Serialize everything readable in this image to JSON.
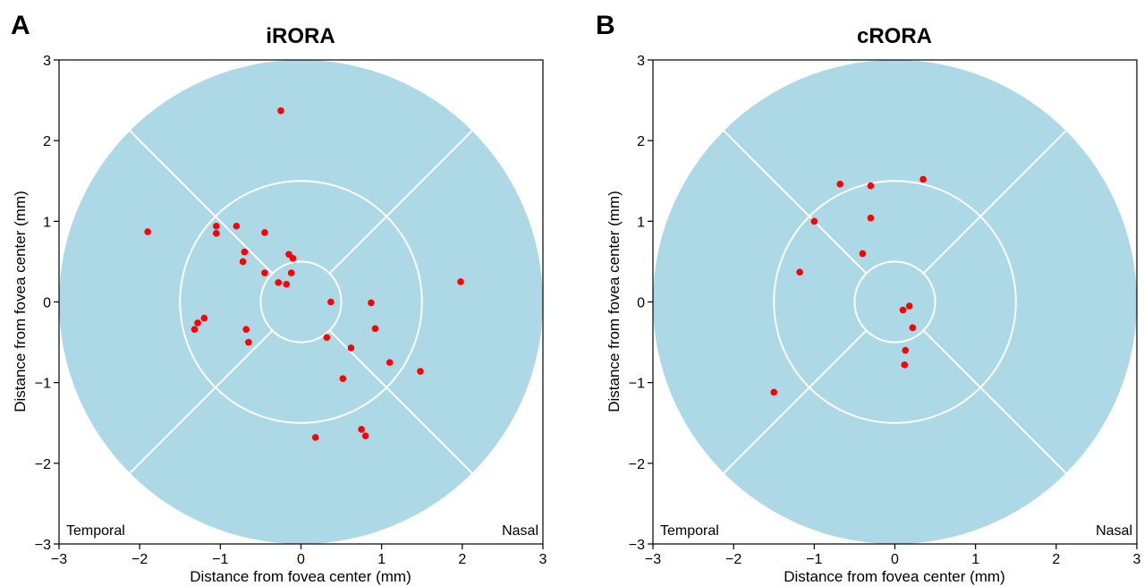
{
  "colors": {
    "region_fill": "#add8e6",
    "grid_lines": "#ffffff",
    "point": "#ff0000"
  },
  "chart_data": [
    {
      "panel": "A",
      "type": "scatter",
      "title": "iRORA",
      "xlabel": "Distance from fovea center (mm)",
      "ylabel": "Distance from fovea center (mm)",
      "xlim": [
        -3,
        3
      ],
      "ylim": [
        -3,
        3
      ],
      "xticks": [
        "−3",
        "−2",
        "−1",
        "0",
        "1",
        "2",
        "3"
      ],
      "yticks": [
        "−3",
        "−2",
        "−1",
        "0",
        "1",
        "2",
        "3"
      ],
      "background": {
        "rings_mm": [
          0.5,
          1.5,
          3.0
        ],
        "sector_boundaries_deg": [
          45,
          135,
          225,
          315
        ]
      },
      "annotations": {
        "left": "Temporal",
        "right": "Nasal"
      },
      "points": [
        {
          "x": -0.25,
          "y": 2.37
        },
        {
          "x": -1.9,
          "y": 0.87
        },
        {
          "x": -1.05,
          "y": 0.94
        },
        {
          "x": -1.05,
          "y": 0.85
        },
        {
          "x": -0.8,
          "y": 0.94
        },
        {
          "x": -0.45,
          "y": 0.86
        },
        {
          "x": -0.7,
          "y": 0.62
        },
        {
          "x": -0.72,
          "y": 0.5
        },
        {
          "x": -0.45,
          "y": 0.36
        },
        {
          "x": -0.15,
          "y": 0.59
        },
        {
          "x": -0.1,
          "y": 0.54
        },
        {
          "x": -0.12,
          "y": 0.36
        },
        {
          "x": -0.28,
          "y": 0.24
        },
        {
          "x": -0.18,
          "y": 0.22
        },
        {
          "x": 0.37,
          "y": 0.0
        },
        {
          "x": 0.87,
          "y": -0.01
        },
        {
          "x": 1.98,
          "y": 0.25
        },
        {
          "x": -1.2,
          "y": -0.2
        },
        {
          "x": -1.28,
          "y": -0.26
        },
        {
          "x": -1.32,
          "y": -0.34
        },
        {
          "x": -0.68,
          "y": -0.34
        },
        {
          "x": -0.65,
          "y": -0.5
        },
        {
          "x": 0.92,
          "y": -0.33
        },
        {
          "x": 0.32,
          "y": -0.44
        },
        {
          "x": 0.62,
          "y": -0.57
        },
        {
          "x": 1.1,
          "y": -0.75
        },
        {
          "x": 1.48,
          "y": -0.86
        },
        {
          "x": 0.52,
          "y": -0.95
        },
        {
          "x": 0.18,
          "y": -1.68
        },
        {
          "x": 0.75,
          "y": -1.58
        },
        {
          "x": 0.8,
          "y": -1.66
        }
      ]
    },
    {
      "panel": "B",
      "type": "scatter",
      "title": "cRORA",
      "xlabel": "Distance from fovea center (mm)",
      "ylabel": "Distance from fovea center (mm)",
      "xlim": [
        -3,
        3
      ],
      "ylim": [
        -3,
        3
      ],
      "xticks": [
        "−3",
        "−2",
        "−1",
        "0",
        "1",
        "2",
        "3"
      ],
      "yticks": [
        "−3",
        "−2",
        "−1",
        "0",
        "1",
        "2",
        "3"
      ],
      "background": {
        "rings_mm": [
          0.5,
          1.5,
          3.0
        ],
        "sector_boundaries_deg": [
          45,
          135,
          225,
          315
        ]
      },
      "annotations": {
        "left": "Temporal",
        "right": "Nasal"
      },
      "points": [
        {
          "x": -0.68,
          "y": 1.46
        },
        {
          "x": -0.3,
          "y": 1.44
        },
        {
          "x": 0.35,
          "y": 1.52
        },
        {
          "x": -1.0,
          "y": 1.0
        },
        {
          "x": -0.3,
          "y": 1.04
        },
        {
          "x": -0.4,
          "y": 0.6
        },
        {
          "x": -1.18,
          "y": 0.37
        },
        {
          "x": 0.18,
          "y": -0.05
        },
        {
          "x": 0.1,
          "y": -0.1
        },
        {
          "x": 0.22,
          "y": -0.32
        },
        {
          "x": 0.13,
          "y": -0.6
        },
        {
          "x": 0.12,
          "y": -0.78
        },
        {
          "x": -1.5,
          "y": -1.12
        }
      ]
    }
  ]
}
